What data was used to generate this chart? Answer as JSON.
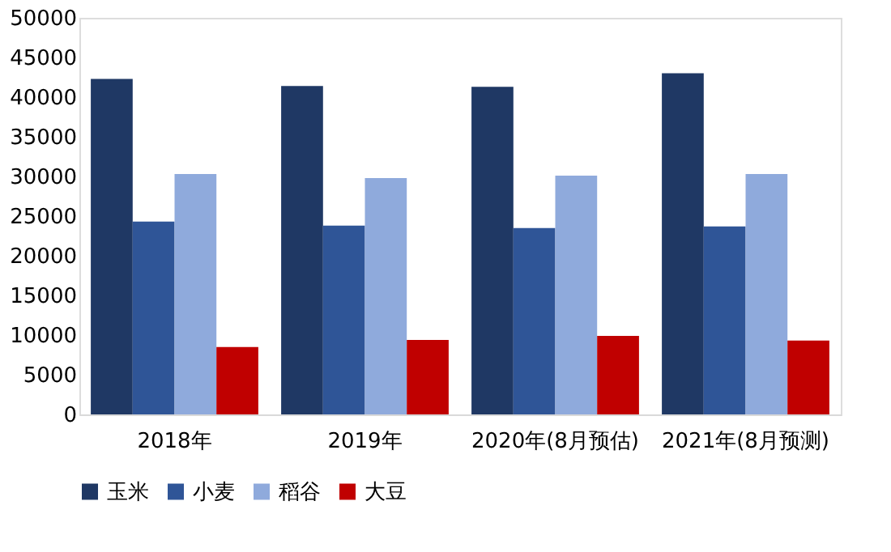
{
  "chart_data": {
    "type": "bar",
    "categories": [
      "2018年",
      "2019年",
      "2020年(8月预估)",
      "2021年(8月预测)"
    ],
    "series": [
      {
        "name": "玉米",
        "color": "#1f3864",
        "values": [
          42300,
          41400,
          41300,
          43000
        ]
      },
      {
        "name": "小麦",
        "color": "#2f5597",
        "values": [
          24300,
          23800,
          23500,
          23700
        ]
      },
      {
        "name": "稻谷",
        "color": "#8faadc",
        "values": [
          30300,
          29800,
          30100,
          30300
        ]
      },
      {
        "name": "大豆",
        "color": "#c00000",
        "values": [
          8500,
          9400,
          9900,
          9300
        ]
      }
    ],
    "ylim": [
      0,
      50000
    ],
    "yticks": [
      0,
      5000,
      10000,
      15000,
      20000,
      25000,
      30000,
      35000,
      40000,
      45000,
      50000
    ],
    "grid": false,
    "legend": "bottom"
  }
}
